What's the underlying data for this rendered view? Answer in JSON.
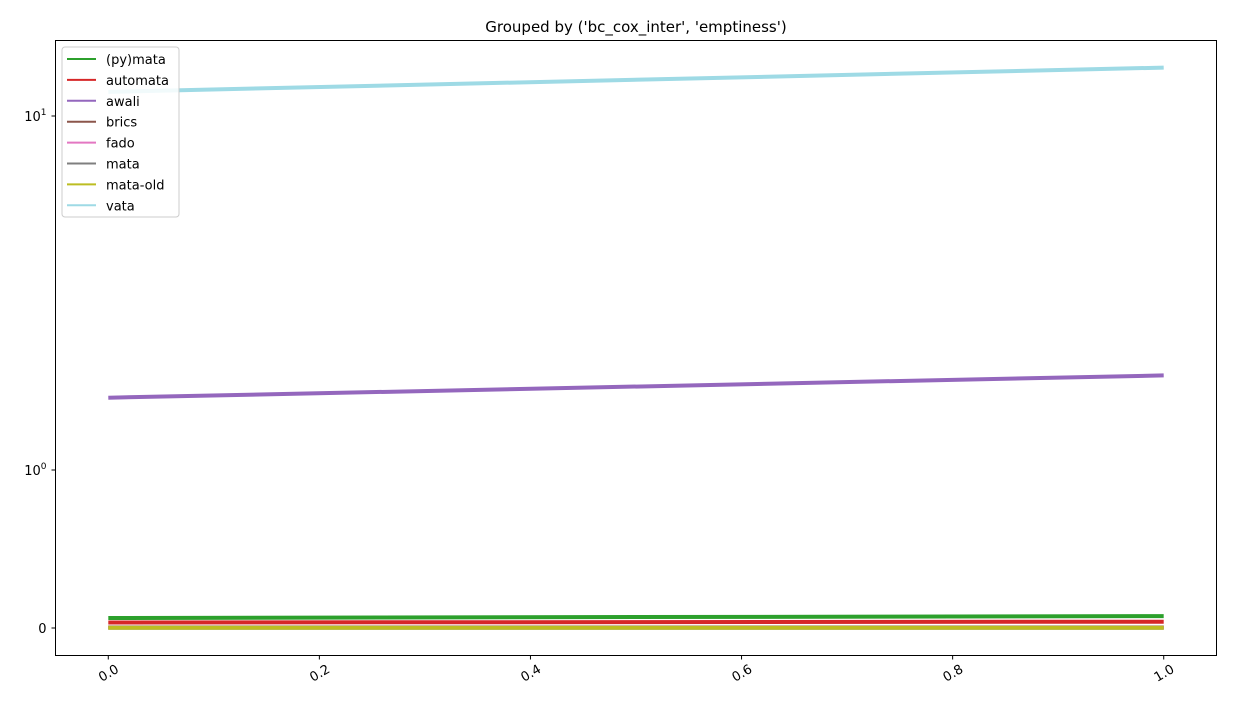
{
  "chart_data": {
    "type": "line",
    "title": "Grouped by ('bc_cox_inter', 'emptiness')",
    "xlabel": "",
    "ylabel": "",
    "x": [
      0.0,
      1.0
    ],
    "xlim": [
      -0.05,
      1.05
    ],
    "yscale": "symlog",
    "x_ticks": [
      0.0,
      0.2,
      0.4,
      0.6,
      0.8,
      1.0
    ],
    "x_tick_labels": [
      "0.0",
      "0.2",
      "0.4",
      "0.6",
      "0.8",
      "1.0"
    ],
    "y_ticks": [
      0,
      1,
      10
    ],
    "y_tick_labels": [
      {
        "base": "0",
        "exp": ""
      },
      {
        "base": "10",
        "exp": "0"
      },
      {
        "base": "10",
        "exp": "1"
      }
    ],
    "legend_position": "upper left",
    "grid": false,
    "series": [
      {
        "name": "(py)mata",
        "color": "#2ca02c",
        "values": [
          0.063,
          0.075
        ]
      },
      {
        "name": "automata",
        "color": "#d62728",
        "values": [
          0.035,
          0.04
        ]
      },
      {
        "name": "awali",
        "color": "#9467bd",
        "values": [
          1.6,
          1.85
        ]
      },
      {
        "name": "brics",
        "color": "#8c564b",
        "values": [
          0.004,
          0.004
        ]
      },
      {
        "name": "fado",
        "color": "#e377c2",
        "values": [
          0.003,
          0.003
        ]
      },
      {
        "name": "mata",
        "color": "#7f7f7f",
        "values": [
          0.002,
          0.002
        ]
      },
      {
        "name": "mata-old",
        "color": "#bcbd22",
        "values": [
          0.001,
          0.001
        ]
      },
      {
        "name": "vata",
        "color": "#9edae5",
        "values": [
          11.7,
          13.7
        ]
      }
    ]
  }
}
